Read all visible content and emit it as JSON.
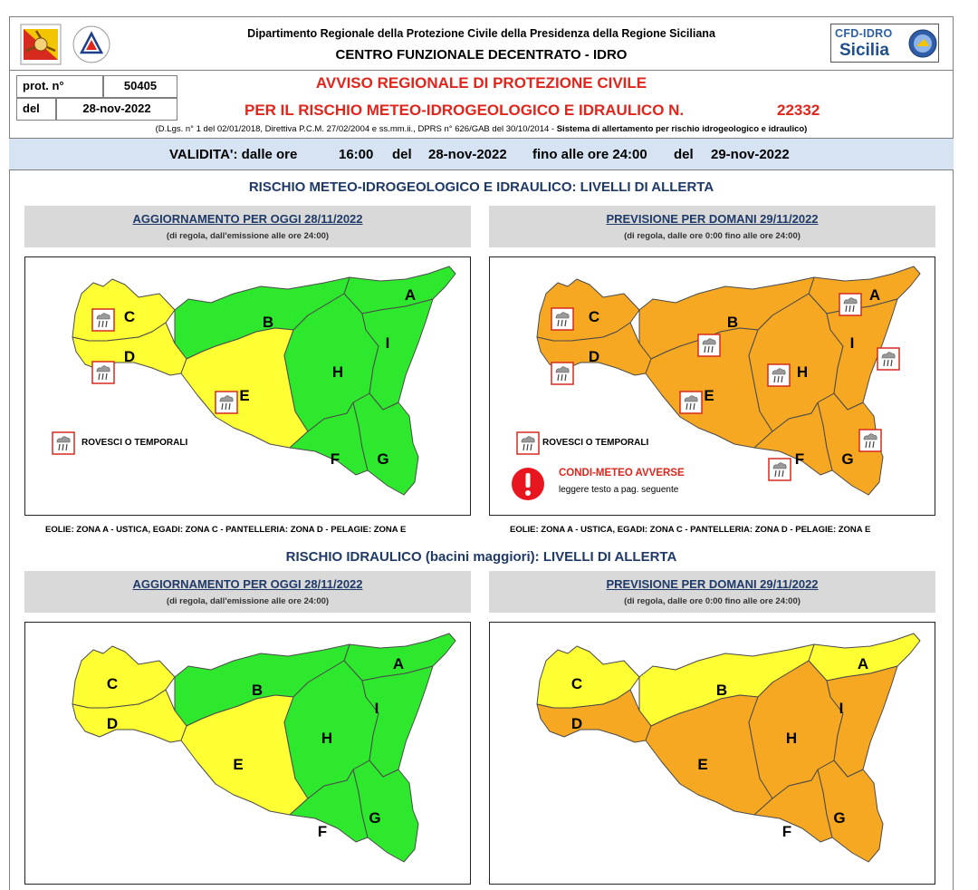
{
  "header": {
    "line1": "Dipartimento Regionale della Protezione Civile della Presidenza della Regione Siciliana",
    "line2": "CENTRO FUNZIONALE DECENTRATO - IDRO",
    "cfd_label": "CFD-IDRO",
    "cfd_region": "Sicilia",
    "prot_label": "prot. n°",
    "prot_value": "50405",
    "del_label": "del",
    "del_value": "28-nov-2022"
  },
  "avviso": {
    "title1": "AVVISO REGIONALE DI PROTEZIONE CIVILE",
    "title2": "PER IL RISCHIO METEO-IDROGEOLOGICO E IDRAULICO N.",
    "number": "22332",
    "legal_plain": "(D.Lgs. n° 1 del 02/01/2018, Direttiva P.C.M. 27/02/2004 e ss.mm.ii., DPRS n° 626/GAB del 30/10/2014 - ",
    "legal_bold": "Sistema di allertamento per rischio idrogeologico e idraulico)"
  },
  "validita": {
    "label": "VALIDITA': dalle ore",
    "start_time": "16:00",
    "del1": "del",
    "start_date": "28-nov-2022",
    "fino": "fino alle ore 24:00",
    "del2": "del",
    "end_date": "29-nov-2022"
  },
  "section1": {
    "title": "RISCHIO METEO-IDROGEOLOGICO E IDRAULICO: LIVELLI DI ALLERTA",
    "today_title": "AGGIORNAMENTO PER OGGI 28/11/2022",
    "today_sub": "(di regola, dall'emissione alle ore 24:00)",
    "tomorrow_title": "PREVISIONE PER DOMANI 29/11/2022",
    "tomorrow_sub": "(di regola, dalle ore 0:00 fino alle ore 24:00)",
    "legend_rovesci": "ROVESCI O TEMPORALI",
    "condi_title": "CONDI-METEO AVVERSE",
    "condi_sub": "leggere testo a pag. seguente",
    "isles_note": "EOLIE: ZONA A - USTICA, EGADI: ZONA C - PANTELLERIA: ZONA D - PELAGIE: ZONA E"
  },
  "section2": {
    "title": "RISCHIO IDRAULICO (bacini maggiori): LIVELLI DI ALLERTA",
    "today_title": "AGGIORNAMENTO PER OGGI 28/11/2022",
    "today_sub": "(di regola, dall'emissione alle ore 24:00)",
    "tomorrow_title": "PREVISIONE PER DOMANI 29/11/2022",
    "tomorrow_sub": "(di regola, dalle ore 0:00 fino alle ore 24:00)"
  },
  "zones": [
    "A",
    "B",
    "C",
    "D",
    "E",
    "F",
    "G",
    "H",
    "I"
  ],
  "colors": {
    "green": "#2ee82e",
    "yellow": "#ffff33",
    "orange": "#f7a823",
    "red_text": "#e0261c",
    "blue_title": "#1f3a68",
    "validity_bg": "#d5e3f3"
  },
  "maps": {
    "meteo_today": {
      "A": "green",
      "B": "green",
      "C": "yellow",
      "D": "yellow",
      "E": "yellow",
      "F": "green",
      "G": "green",
      "H": "green",
      "I": "green"
    },
    "meteo_tomorrow": {
      "A": "orange",
      "B": "orange",
      "C": "orange",
      "D": "orange",
      "E": "orange",
      "F": "orange",
      "G": "orange",
      "H": "orange",
      "I": "orange"
    },
    "idraulico_today": {
      "A": "green",
      "B": "green",
      "C": "yellow",
      "D": "yellow",
      "E": "yellow",
      "F": "green",
      "G": "green",
      "H": "green",
      "I": "green"
    },
    "idraulico_tomorrow": {
      "A": "yellow",
      "B": "yellow",
      "C": "yellow",
      "D": "orange",
      "E": "orange",
      "F": "orange",
      "G": "orange",
      "H": "orange",
      "I": "orange"
    }
  }
}
